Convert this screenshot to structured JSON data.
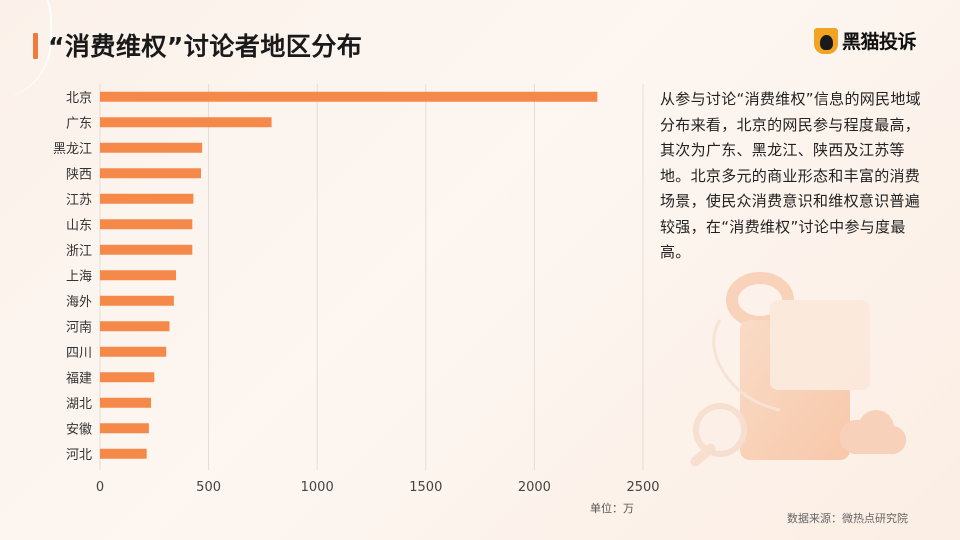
{
  "header": {
    "title": "“消费维权”讨论者地区分布",
    "logo_text": "黑猫投诉"
  },
  "description": "从参与讨论“消费维权”信息的网民地域分布来看，北京的网民参与程度最高，其次为广东、黑龙江、陕西及江苏等地。北京多元的商业形态和丰富的消费场景，使民众消费意识和维权意识普遍较强，在“消费维权”讨论中参与度最高。",
  "unit_label": "单位：万",
  "source_label": "数据来源：微热点研究院",
  "colors": {
    "bar": "#f5894a",
    "accent": "#f07b3f"
  },
  "chart_data": {
    "type": "bar",
    "orientation": "horizontal",
    "title": "",
    "xlabel": "",
    "ylabel": "",
    "categories": [
      "北京",
      "广东",
      "黑龙江",
      "陕西",
      "江苏",
      "山东",
      "浙江",
      "上海",
      "海外",
      "河南",
      "四川",
      "福建",
      "湖北",
      "安徽",
      "河北"
    ],
    "values": [
      2290,
      790,
      470,
      465,
      430,
      425,
      425,
      350,
      340,
      320,
      305,
      250,
      235,
      225,
      215
    ],
    "xlim": [
      0,
      2500
    ],
    "xticks": [
      0,
      500,
      1000,
      1500,
      2000,
      2500
    ],
    "grid": true
  }
}
